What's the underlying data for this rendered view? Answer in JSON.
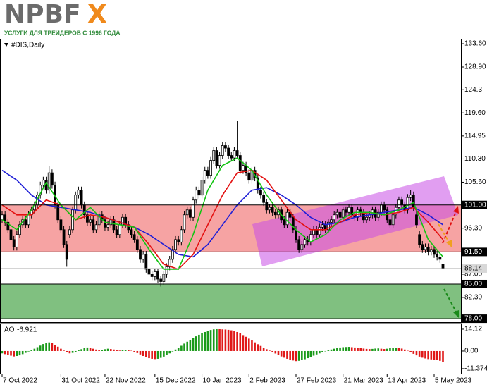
{
  "logo": {
    "main": "NPBF",
    "accent": "X",
    "tagline": "УСЛУГИ ДЛЯ ТРЕЙДЕРОВ С 1996 ГОДА"
  },
  "chart_data": [
    {
      "type": "candlestick",
      "title": "#DIS,Daily",
      "categories": [
        "7 Oct 2022",
        null,
        null,
        null,
        null,
        null,
        null,
        null,
        null,
        null,
        null,
        null,
        null,
        null,
        null,
        null,
        null,
        null,
        null,
        null,
        "31 Oct 2022",
        null,
        null,
        null,
        null,
        null,
        null,
        null,
        null,
        null,
        null,
        null,
        null,
        null,
        null,
        "22 Nov 2022",
        null,
        null,
        null,
        null,
        null,
        null,
        null,
        null,
        null,
        null,
        null,
        null,
        null,
        null,
        null,
        null,
        "15 Dec 2022",
        null,
        null,
        null,
        null,
        null,
        null,
        null,
        null,
        null,
        null,
        null,
        null,
        null,
        null,
        null,
        "10 Jan 2023",
        null,
        null,
        null,
        null,
        null,
        null,
        null,
        null,
        null,
        null,
        null,
        null,
        null,
        null,
        null,
        "2 Feb 2023",
        null,
        null,
        null,
        null,
        null,
        null,
        null,
        null,
        null,
        null,
        null,
        null,
        null,
        null,
        null,
        "27 Feb 2023",
        null,
        null,
        null,
        null,
        null,
        null,
        null,
        null,
        null,
        null,
        null,
        null,
        null,
        null,
        null,
        "21 Mar 2023",
        null,
        null,
        null,
        null,
        null,
        null,
        null,
        null,
        null,
        null,
        null,
        null,
        null,
        null,
        "13 Apr 2023",
        null,
        null,
        null,
        null,
        null,
        null,
        null,
        null,
        null,
        null,
        null,
        null,
        null,
        null,
        null,
        "5 May 2023",
        null,
        null,
        null
      ],
      "open": [
        98,
        99,
        97.5,
        96,
        94,
        92.5,
        95,
        97,
        98,
        97,
        99,
        100,
        101,
        103,
        105,
        106,
        104,
        107.5,
        105,
        101,
        98,
        96,
        93,
        95,
        96,
        100,
        103,
        104,
        101,
        99,
        97.5,
        98,
        96,
        97,
        99,
        98,
        96.5,
        97,
        98,
        96,
        95,
        97,
        98.5,
        97,
        96,
        95,
        94,
        92,
        90,
        91,
        88,
        87,
        86.5,
        87.5,
        86,
        85.5,
        87,
        88.5,
        90,
        92,
        94,
        93.5,
        96,
        99,
        100,
        98.5,
        102,
        104,
        103,
        106,
        108,
        107,
        110,
        112,
        109,
        111,
        113,
        112.5,
        111,
        110.5,
        112,
        111,
        108,
        109,
        107.5,
        106,
        108,
        106.5,
        104,
        103,
        101.5,
        100,
        100.5,
        99.5,
        99,
        100,
        98,
        97,
        99.5,
        98.5,
        96,
        94,
        92,
        93,
        94,
        93.5,
        95,
        96,
        95,
        96.5,
        97,
        96,
        97.5,
        98,
        99,
        99.5,
        98.5,
        100,
        99.5,
        100.5,
        99,
        98.5,
        100,
        99.5,
        98,
        98.5,
        99,
        100,
        98.5,
        99.5,
        101,
        100,
        98,
        97,
        99,
        100.5,
        102,
        101,
        100,
        102.5,
        103,
        99,
        95,
        93,
        92,
        92.5,
        91.5,
        92,
        91,
        90.5,
        89
      ],
      "high": [
        99.7,
        99.7,
        98.2,
        96.7,
        94.7,
        95.7,
        97.7,
        98.7,
        98.7,
        99.7,
        100.7,
        101.7,
        103.7,
        105.7,
        106.7,
        106.7,
        108.9,
        108.2,
        105.7,
        101.7,
        98.7,
        96.7,
        93.7,
        96.7,
        100.7,
        103.7,
        104.7,
        104.7,
        101.7,
        99.7,
        98.7,
        98.7,
        97.7,
        99.7,
        99.7,
        98.7,
        97.7,
        98.7,
        98.7,
        96.7,
        97.7,
        99.2,
        99.2,
        97.7,
        96.7,
        95.7,
        94.7,
        92.7,
        91.7,
        91.7,
        88.7,
        87.7,
        88.2,
        88.2,
        86.7,
        87.7,
        89.2,
        90.7,
        92.7,
        94.7,
        94.7,
        96.7,
        99.7,
        100.7,
        100.7,
        102.7,
        104.7,
        104.7,
        106.7,
        108.7,
        108.7,
        110.7,
        112.7,
        112.7,
        111.7,
        113.7,
        113.7,
        113.2,
        111.7,
        112.7,
        118,
        111.7,
        109.7,
        109.7,
        108.2,
        108.7,
        108.7,
        107.2,
        104.7,
        103.7,
        102.2,
        101.2,
        101.2,
        100.2,
        100.7,
        100.7,
        98.7,
        100.2,
        100.2,
        99.2,
        96.7,
        94.7,
        93.7,
        94.7,
        94.7,
        95.7,
        96.7,
        96.7,
        97.2,
        97.7,
        97.7,
        98.2,
        98.7,
        99.7,
        100.2,
        100.2,
        100.7,
        100.7,
        101.2,
        101.2,
        99.7,
        100.7,
        100.7,
        100.2,
        99.2,
        99.7,
        100.7,
        100.7,
        100.2,
        101.7,
        101.7,
        100.7,
        98.7,
        99.7,
        101.2,
        102.7,
        102.7,
        101.7,
        103.2,
        104,
        103.7,
        99.7,
        95.7,
        93.7,
        93.2,
        93.2,
        92.7,
        92.7,
        91.7,
        91.2,
        89.7
      ],
      "low": [
        97.3,
        96.8,
        95.3,
        93.3,
        91.8,
        91.8,
        94.3,
        96.3,
        96.3,
        96.3,
        98.3,
        99.3,
        100.3,
        102.3,
        104.3,
        103.3,
        103.3,
        104.3,
        100.3,
        97.3,
        95.3,
        92.3,
        88.5,
        94.3,
        95.3,
        99.3,
        102.3,
        100.3,
        98.3,
        96.8,
        96.8,
        95.3,
        95.3,
        96.3,
        97.3,
        95.8,
        95.8,
        96.3,
        95.3,
        94.3,
        94.3,
        96.3,
        96.3,
        95.3,
        94.3,
        93.3,
        91.3,
        89.3,
        89.3,
        87.3,
        86.3,
        85.8,
        85.8,
        85.3,
        84.5,
        84.8,
        86.3,
        87.8,
        89.3,
        91.3,
        92.8,
        92.8,
        95.3,
        98.3,
        97.8,
        97.8,
        101.3,
        102.3,
        102.3,
        105.3,
        106.3,
        106.3,
        109.3,
        108.3,
        108.3,
        110.3,
        111.8,
        110.3,
        109.8,
        109.8,
        110.3,
        107.3,
        107.3,
        106.8,
        105.3,
        105.3,
        105.8,
        103.3,
        102.3,
        100.8,
        99.3,
        99.3,
        98.8,
        98.3,
        98.3,
        97.3,
        96.3,
        96.3,
        97.8,
        95.3,
        93.3,
        91.3,
        91.3,
        92.3,
        92.8,
        92.8,
        94.3,
        94.3,
        94.3,
        95.8,
        95.3,
        95.3,
        96.8,
        97.3,
        98.3,
        97.8,
        97.8,
        98.8,
        98.8,
        98.3,
        97.8,
        97.8,
        98.8,
        97.3,
        97.3,
        97.8,
        98.3,
        97.8,
        97.8,
        98.8,
        99.3,
        97.3,
        96.3,
        96.3,
        98.3,
        99.8,
        100.3,
        99.3,
        99.3,
        101.8,
        99.8,
        96.3,
        92.3,
        91.3,
        91.3,
        90.8,
        90.8,
        90.3,
        89.8,
        89.3,
        87.6
      ],
      "close": [
        99,
        97.5,
        96,
        94,
        92.5,
        95,
        97,
        98,
        97,
        99,
        100,
        101,
        103,
        105,
        106,
        104,
        107.5,
        105,
        101,
        98,
        96,
        93,
        90,
        96,
        100,
        103,
        104,
        101,
        99,
        97.5,
        98,
        96,
        97,
        99,
        98,
        96.5,
        97,
        98,
        96,
        95,
        97,
        98.5,
        97,
        96,
        95,
        94,
        92,
        90,
        91,
        88,
        87,
        86.5,
        87.5,
        86,
        85.5,
        87,
        88.5,
        90,
        92,
        94,
        93.5,
        96,
        99,
        100,
        98.5,
        102,
        104,
        103,
        106,
        108,
        107,
        110,
        112,
        109,
        111,
        113,
        112.5,
        111,
        110.5,
        112,
        111,
        108,
        109,
        107.5,
        106,
        108,
        106.5,
        104,
        103,
        101.5,
        100,
        100.5,
        99.5,
        99,
        100,
        98,
        97,
        99.5,
        98.5,
        96,
        94,
        92,
        93,
        94,
        93.5,
        95,
        96,
        95,
        96.5,
        97,
        96,
        97.5,
        98,
        99,
        99.5,
        98.5,
        100,
        99.5,
        100.5,
        99,
        98.5,
        100,
        99.5,
        98,
        98.5,
        99,
        100,
        98.5,
        99.5,
        101,
        100,
        98,
        97,
        99,
        100.5,
        102,
        101,
        100,
        102.5,
        103,
        100.5,
        97,
        93,
        92,
        92.5,
        91.5,
        92,
        91,
        90.5,
        90,
        88.14
      ],
      "up_color": "#ffffff",
      "down_color": "#000000",
      "series": [
        {
          "color": "#1f1fd6",
          "x": [
            0,
            5,
            10,
            15,
            20,
            25,
            30,
            35,
            40,
            45,
            50,
            55,
            60,
            65,
            70,
            75,
            80,
            85,
            90,
            95,
            100,
            105,
            110,
            115,
            120,
            125,
            130,
            135,
            140,
            145,
            150
          ],
          "values": [
            108,
            106,
            103,
            101,
            100.5,
            100,
            99.5,
            98.5,
            97.5,
            96.5,
            95,
            93,
            91,
            90.5,
            93,
            97,
            101,
            104,
            104.5,
            103,
            101,
            98.5,
            97,
            97.5,
            98.5,
            99,
            99.5,
            100,
            100.5,
            99,
            97
          ]
        },
        {
          "color": "#e31010",
          "x": [
            0,
            5,
            10,
            15,
            20,
            25,
            30,
            35,
            40,
            45,
            50,
            55,
            60,
            65,
            70,
            75,
            80,
            85,
            90,
            95,
            100,
            105,
            110,
            115,
            120,
            125,
            130,
            135,
            140,
            145,
            150
          ],
          "values": [
            101,
            99,
            99,
            102,
            101,
            98,
            99,
            98.5,
            97.5,
            96.5,
            93,
            89,
            88,
            91,
            97,
            103,
            107.5,
            108,
            106,
            102,
            98,
            96,
            96,
            97.5,
            99,
            99.5,
            99,
            99.5,
            100.5,
            97.5,
            94
          ]
        },
        {
          "color": "#12c412",
          "x": [
            0,
            5,
            10,
            15,
            20,
            25,
            30,
            35,
            40,
            45,
            50,
            55,
            60,
            65,
            70,
            75,
            80,
            85,
            90,
            95,
            100,
            105,
            110,
            115,
            120,
            125,
            130,
            135,
            140,
            145,
            150
          ],
          "values": [
            98,
            96,
            100,
            105.5,
            101,
            98,
            100.5,
            97.5,
            97,
            96.5,
            92,
            88,
            88,
            95,
            104,
            109,
            110.5,
            108,
            103,
            99,
            96,
            93.5,
            95,
            98,
            99.5,
            99.5,
            99,
            100,
            101.5,
            94,
            90.5
          ]
        }
      ],
      "zones": [
        {
          "from": 91.5,
          "to": 101,
          "color": "#f6a3a3"
        },
        {
          "from": 78,
          "to": 85,
          "color": "#80c080"
        }
      ],
      "levels": [
        {
          "value": 101,
          "label": "101.00"
        },
        {
          "value": 91.5,
          "label": "91.50"
        },
        {
          "value": 85,
          "label": "85.00"
        },
        {
          "value": 78,
          "label": "78.00"
        }
      ],
      "current_price": 88.14,
      "ylim": [
        77.3,
        134.6
      ],
      "yticks": [
        {
          "value": 133.6,
          "label": "133.60"
        },
        {
          "value": 128.9,
          "label": "128.90"
        },
        124.3,
        {
          "value": 119.6,
          "label": "119.60"
        },
        114.95,
        {
          "value": 110.3,
          "label": "110.30"
        },
        {
          "value": 105.6,
          "label": "105.60"
        },
        {
          "value": 96.3,
          "label": "96.30"
        },
        {
          "value": 87,
          "label": "87.00"
        },
        {
          "value": 82.3,
          "label": "82.30"
        }
      ]
    },
    {
      "type": "bar",
      "title": "AO",
      "values": [
        -1.5,
        -2,
        -2.5,
        -3,
        -3.5,
        -3.2,
        -2.8,
        -2,
        -1.2,
        -0.3,
        0.5,
        1.5,
        2.5,
        3.5,
        4.5,
        5.3,
        5.6,
        5,
        4,
        2.8,
        1.5,
        0.3,
        -0.8,
        -1.5,
        -1.2,
        -0.5,
        0.5,
        1.2,
        2,
        2.3,
        2,
        1.5,
        1,
        0.6,
        0.8,
        1.2,
        1.5,
        1.3,
        1,
        0.6,
        0.3,
        0.5,
        0.8,
        0.6,
        0.2,
        -0.5,
        -1.3,
        -2.2,
        -3.2,
        -4,
        -4.6,
        -5,
        -5.2,
        -5,
        -4.4,
        -3.6,
        -2.6,
        -1.5,
        -0.3,
        1,
        2.2,
        3.4,
        4.8,
        6,
        7.2,
        8.3,
        9.5,
        10.5,
        11.5,
        12.3,
        13,
        13.6,
        14,
        14.12,
        14.1,
        14,
        13.9,
        13.7,
        13.4,
        13,
        12.3,
        11.4,
        10.3,
        9.2,
        8,
        6.8,
        5.6,
        4.4,
        3.3,
        2.2,
        1.2,
        0.3,
        -0.6,
        -1.6,
        -2.6,
        -3.5,
        -4.3,
        -5,
        -5.6,
        -6.1,
        -6.5,
        -6.3,
        -5.9,
        -5.3,
        -4.6,
        -3.8,
        -3,
        -2.2,
        -1.5,
        -0.8,
        -0.2,
        0.4,
        1,
        1.5,
        2,
        2.3,
        2.5,
        2.6,
        2.7,
        2.5,
        2.3,
        2.1,
        1.9,
        1.6,
        1.4,
        1.3,
        1.4,
        1.6,
        1.7,
        1.5,
        1.3,
        1.5,
        1.8,
        2,
        2.2,
        2,
        1.6,
        1,
        0.2,
        -0.8,
        -1.8,
        -2.8,
        -3.6,
        -4.3,
        -4.8,
        -5.2,
        -5.4,
        -5.6,
        -5.8,
        -6.3,
        -6.921
      ],
      "up_color": "#1a9a1a",
      "down_color": "#e01818",
      "ylim": [
        -14.6,
        17.3
      ],
      "yticks": [
        14.12,
        {
          "value": 0,
          "label": "0.00"
        },
        -11.374
      ]
    }
  ]
}
